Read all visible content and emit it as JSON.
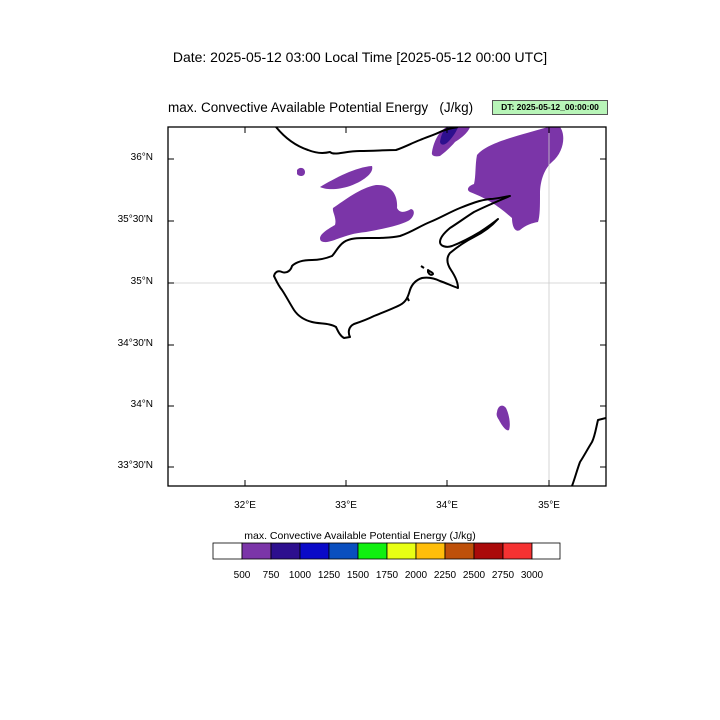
{
  "header": {
    "date_title": "Date: 2025-05-12  03:00 Local Time [2025-05-12  00:00 UTC]",
    "field_title": "max. Convective Available Potential Energy   (J/kg)",
    "dt_badge": "DT: 2025-05-12_00:00:00"
  },
  "map": {
    "lat_labels": [
      "36°N",
      "35°30'N",
      "35°N",
      "34°30'N",
      "34°N",
      "33°30'N"
    ],
    "lon_labels": [
      "32°E",
      "33°E",
      "34°E",
      "35°E"
    ],
    "grid_lines": [
      "35°N",
      "35°E"
    ]
  },
  "colorbar": {
    "title": "max. Convective Available Potential Energy  (J/kg)",
    "levels": [
      "500",
      "750",
      "1000",
      "1250",
      "1500",
      "1750",
      "2000",
      "2250",
      "2500",
      "2750",
      "3000"
    ],
    "colors": [
      "#ffffff",
      "#7b35a8",
      "#2d0f8e",
      "#0a0ac8",
      "#0a4fbf",
      "#10f010",
      "#e8ff14",
      "#ffbe0a",
      "#be500a",
      "#aa0a0a",
      "#f53232",
      "#ffffff"
    ]
  },
  "colors": {
    "cape_500_750": "#7b35a8",
    "cape_750_1000": "#2d0f8e",
    "dt_badge_bg": "#b8f5b8"
  }
}
